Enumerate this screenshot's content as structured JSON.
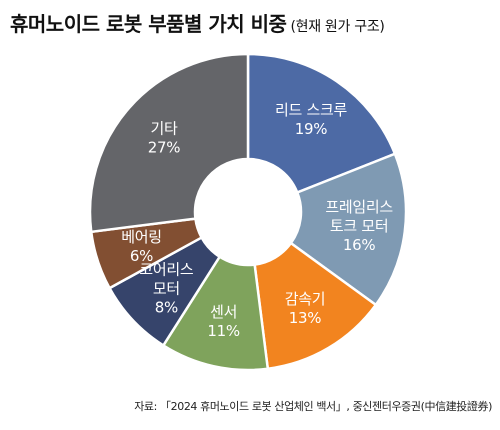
{
  "header": {
    "title": "휴머노이드 로봇 부품별 가치 비중",
    "subtitle": "(현재 원가 구조)"
  },
  "source": "자료: 「2024 휴머노이드 로봇 산업체인 백서」, 중신젠터우증권(中信建投證券)",
  "chart_data": {
    "type": "pie",
    "donut": true,
    "unit": "%",
    "title": "휴머노이드 로봇 부품별 가치 비중",
    "subtitle": "(현재 원가 구조)",
    "slices": [
      {
        "key": "screw",
        "lines": [
          "리드 스크루"
        ],
        "label": "리드 스크루",
        "value": 19,
        "color": "#4d6aa5"
      },
      {
        "key": "motor",
        "lines": [
          "프레임리스",
          "토크 모터"
        ],
        "label": "프레임리스 토크 모터",
        "value": 16,
        "color": "#7f9ab3"
      },
      {
        "key": "reducer",
        "lines": [
          "감속기"
        ],
        "label": "감속기",
        "value": 13,
        "color": "#f2841f"
      },
      {
        "key": "sensor",
        "lines": [
          "센서"
        ],
        "label": "센서",
        "value": 11,
        "color": "#7fa35c"
      },
      {
        "key": "coreless",
        "lines": [
          "코어리스",
          "모터"
        ],
        "label": "코어리스 모터",
        "value": 8,
        "color": "#36446b"
      },
      {
        "key": "bearing",
        "lines": [
          "베어링"
        ],
        "label": "베어링",
        "value": 6,
        "color": "#824f32"
      },
      {
        "key": "other",
        "lines": [
          "기타"
        ],
        "label": "기타",
        "value": 27,
        "color": "#646569"
      }
    ],
    "value_labels": [
      "19%",
      "16%",
      "13%",
      "11%",
      "8%",
      "6%",
      "27%"
    ],
    "legend": "none"
  }
}
